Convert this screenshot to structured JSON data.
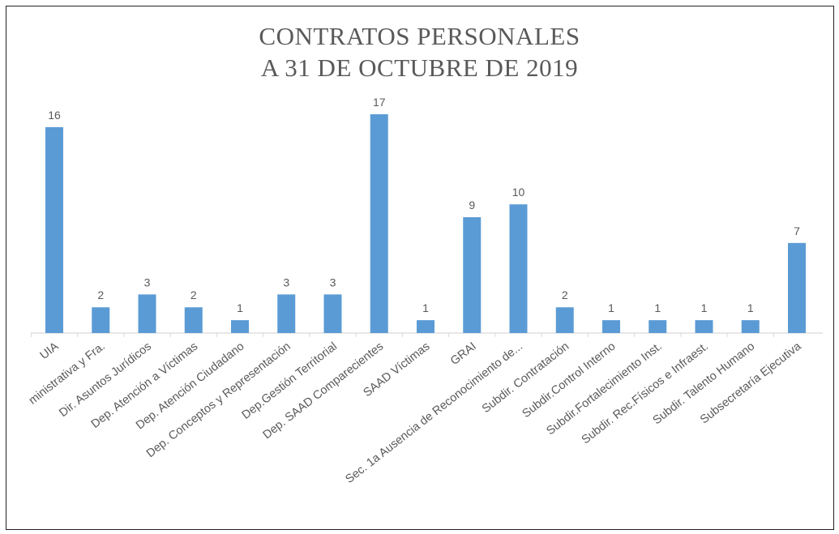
{
  "chart_data": {
    "type": "bar",
    "title": "CONTRATOS PERSONALES",
    "subtitle": "A 31 DE OCTUBRE DE 2019",
    "categories": [
      "UIA",
      "ministrativa y Fra.",
      "Dir. Asuntos Jurídicos",
      "Dep. Atención a Víctimas",
      "Dep. Atención Ciudadano",
      "Dep. Conceptos y Representación",
      "Dep.Gestión Territorial",
      "Dep. SAAD Comparecientes",
      "SAAD Víctimas",
      "GRAI",
      "Sec. 1a Ausencia de Reconocimiento de...",
      "Subdir. Contratación",
      "Subdir.Control Interno",
      "Subdir.Fortalecimiento Inst.",
      "Subdir. Rec.Físicos e Infraest.",
      "Subdir. Talento Humano",
      "Subsecretaría Ejecutiva"
    ],
    "values": [
      16,
      2,
      3,
      2,
      1,
      3,
      3,
      17,
      1,
      9,
      10,
      2,
      1,
      1,
      1,
      1,
      7
    ],
    "ylim": [
      0,
      17
    ],
    "bar_color": "#5B9BD5",
    "axis_color": "#D9D9D9",
    "text_color": "#595959",
    "grid": false,
    "legend": "none"
  }
}
